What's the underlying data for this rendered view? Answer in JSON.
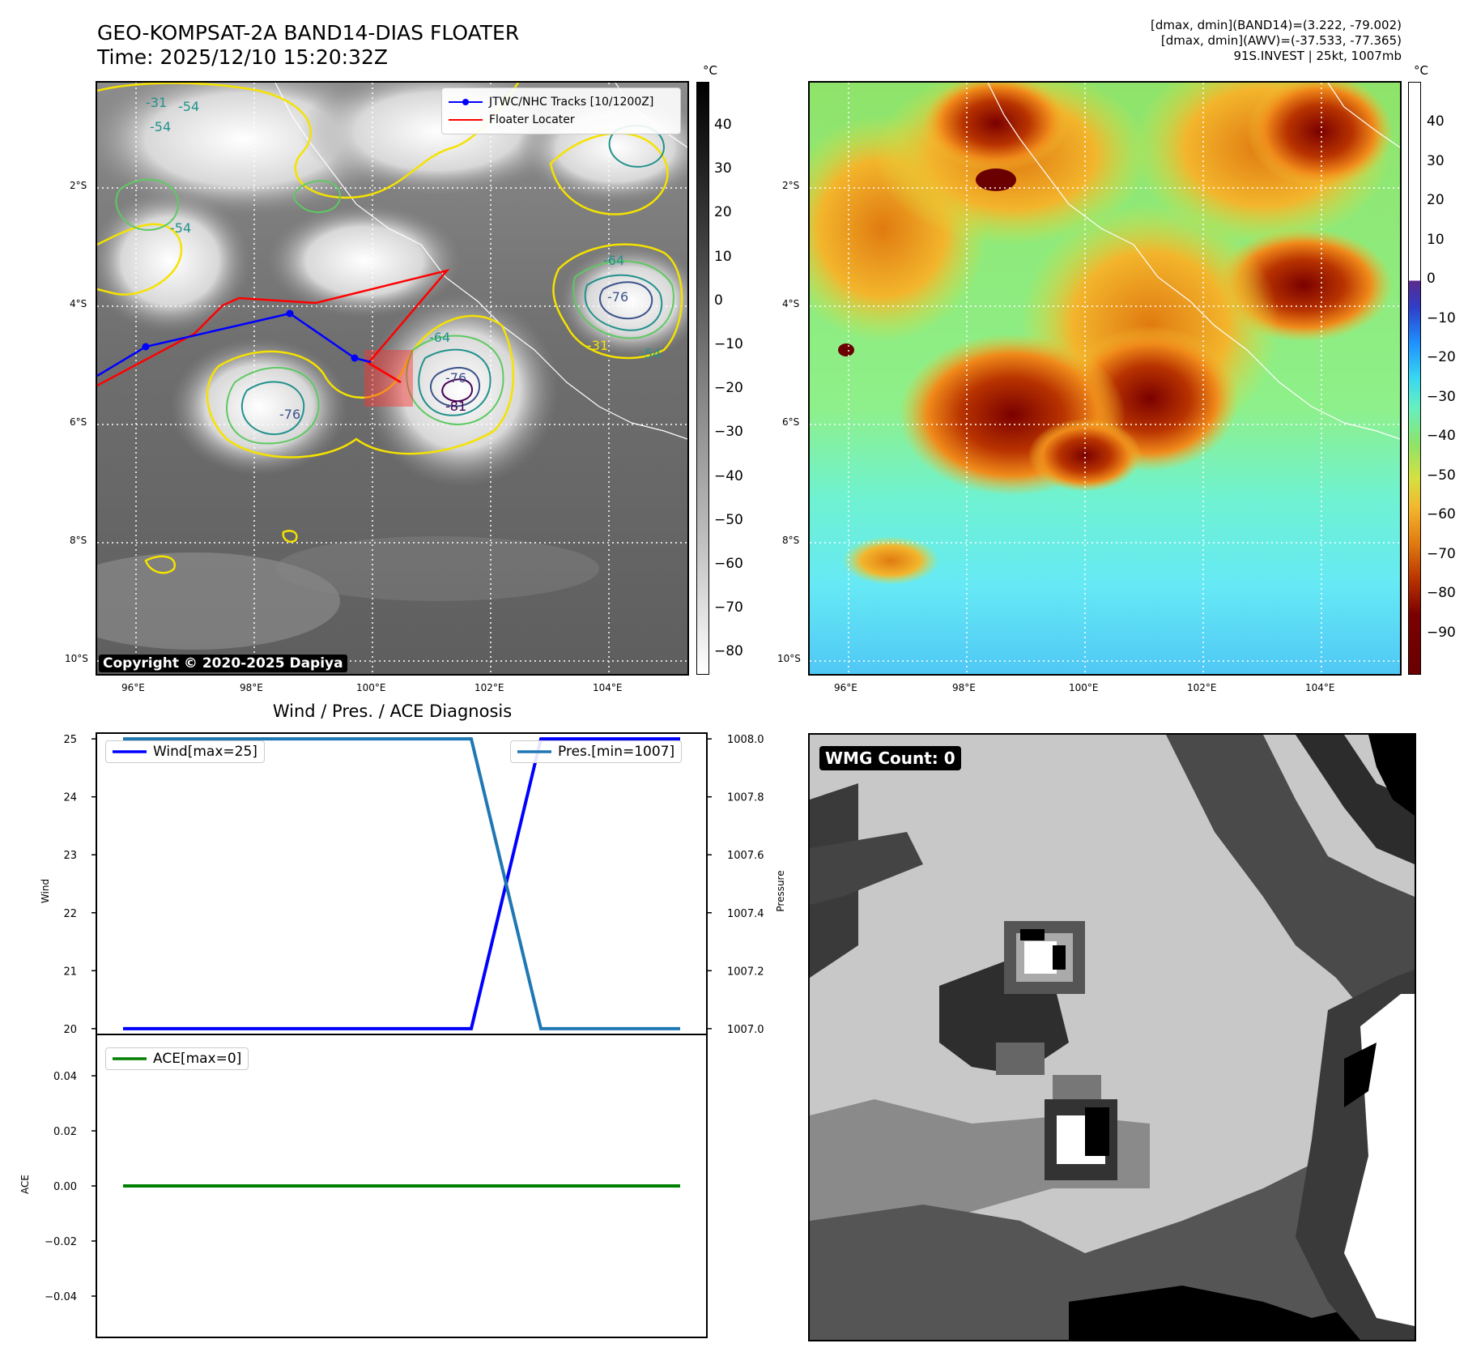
{
  "header": {
    "title_line1": "GEO-KOMPSAT-2A BAND14-DIAS FLOATER",
    "title_line2": "Time: 2025/12/10 15:20:32Z",
    "info_line1": "[dmax, dmin](BAND14)=(3.222, -79.002)",
    "info_line2": "[dmax, dmin](AWV)=(-37.533, -77.365)",
    "info_line3": "91S.INVEST | 25kt, 1007mb"
  },
  "map_left": {
    "lat_labels": [
      "2°S",
      "4°S",
      "6°S",
      "8°S",
      "10°S"
    ],
    "lon_labels": [
      "96°E",
      "98°E",
      "100°E",
      "102°E",
      "104°E"
    ],
    "legend": [
      "JTWC/NHC Tracks [10/1200Z]",
      "Floater Locater"
    ],
    "contour_labels": [
      "-31",
      "-54",
      "-54",
      "-64",
      "-64",
      "-76",
      "-81",
      "-76",
      "-54",
      "-31",
      "-76",
      "-54"
    ],
    "copyright": "Copyright © 2020-2025 Dapiya",
    "colorbar_unit": "°C",
    "colorbar_ticks": [
      "40",
      "30",
      "20",
      "10",
      "0",
      "−10",
      "−20",
      "−30",
      "−40",
      "−50",
      "−60",
      "−70",
      "−80"
    ]
  },
  "map_right": {
    "lat_labels": [
      "2°S",
      "4°S",
      "6°S",
      "8°S",
      "10°S"
    ],
    "lon_labels": [
      "96°E",
      "98°E",
      "100°E",
      "102°E",
      "104°E"
    ],
    "colorbar_unit": "°C",
    "colorbar_ticks": [
      "40",
      "30",
      "20",
      "10",
      "0",
      "−10",
      "−20",
      "−30",
      "−40",
      "−50",
      "−60",
      "−70",
      "−80",
      "−90"
    ]
  },
  "diagnosis": {
    "title": "Wind / Pres. / ACE Diagnosis",
    "wind_legend": "Wind[max=25]",
    "pres_legend": "Pres.[min=1007]",
    "ace_legend": "ACE[max=0]",
    "wind_axis_label": "Wind",
    "pres_axis_label": "Pressure",
    "ace_axis_label": "ACE",
    "wind_ticks": [
      "25",
      "24",
      "23",
      "22",
      "21",
      "20"
    ],
    "pres_ticks": [
      "1008.0",
      "1007.8",
      "1007.6",
      "1007.4",
      "1007.2",
      "1007.0"
    ],
    "ace_ticks": [
      "0.04",
      "0.02",
      "0.00",
      "−0.02",
      "−0.04"
    ]
  },
  "wmg": {
    "label": "WMG Count: 0"
  },
  "colors": {
    "wind": "#0000ff",
    "pres": "#1f77b4",
    "ace": "#008000",
    "track": "#0000ff",
    "floater": "#ff0000"
  },
  "chart_data": [
    {
      "type": "line",
      "x": [
        0,
        1,
        2,
        3,
        4,
        5,
        6,
        7,
        8
      ],
      "series": [
        {
          "name": "Wind[max=25]",
          "axis": "left",
          "values": [
            20,
            20,
            20,
            20,
            20,
            20,
            25,
            25,
            25
          ]
        },
        {
          "name": "Pres.[min=1007]",
          "axis": "right",
          "values": [
            1008,
            1008,
            1008,
            1008,
            1008,
            1008,
            1007,
            1007,
            1007
          ]
        }
      ],
      "ylabel": "Wind",
      "y2label": "Pressure",
      "ylim": [
        19.9,
        25.1
      ],
      "y2lim": [
        1006.98,
        1008.02
      ],
      "grid": false
    },
    {
      "type": "line",
      "x": [
        0,
        1,
        2,
        3,
        4,
        5,
        6,
        7,
        8
      ],
      "series": [
        {
          "name": "ACE[max=0]",
          "values": [
            0,
            0,
            0,
            0,
            0,
            0,
            0,
            0,
            0
          ]
        }
      ],
      "ylabel": "ACE",
      "ylim": [
        -0.055,
        0.055
      ],
      "grid": false
    }
  ]
}
